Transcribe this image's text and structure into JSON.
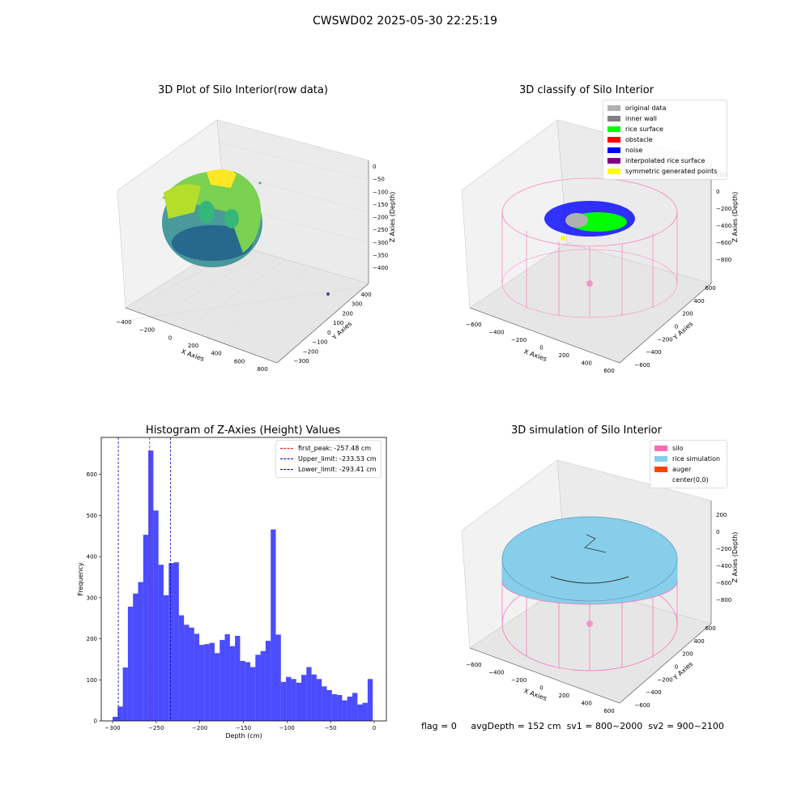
{
  "suptitle": "CWSWD02 2025-05-30 22:25:19",
  "panels": {
    "raw": {
      "title": "3D Plot of Silo Interior(row data)",
      "xlabel": "X Axies",
      "ylabel": "Y Axies",
      "zlabel": "Z Axies (Depth)",
      "xticks": [
        "−400",
        "−200",
        "0",
        "200",
        "400",
        "600",
        "800"
      ],
      "yticks": [
        "−300",
        "−200",
        "−100",
        "0",
        "100",
        "200",
        "300",
        "400"
      ],
      "zticks": [
        "0",
        "−50",
        "−100",
        "−150",
        "−200",
        "−250",
        "−300",
        "−350",
        "−400"
      ]
    },
    "classify": {
      "title": "3D classify of Silo Interior",
      "xlabel": "X Axies",
      "ylabel": "Y Axies",
      "zlabel": "Z Axies (Depth)",
      "xticks": [
        "−600",
        "−400",
        "−200",
        "0",
        "200",
        "400",
        "600"
      ],
      "yticks": [
        "−600",
        "−400",
        "−200",
        "0",
        "200",
        "400",
        "600"
      ],
      "zticks": [
        "200",
        "0",
        "−200",
        "−400",
        "−600",
        "−800"
      ],
      "legend": [
        {
          "label": "original data",
          "color": "#b0b0b0"
        },
        {
          "label": "inner wall",
          "color": "#808080"
        },
        {
          "label": "rice surface",
          "color": "#00ff00"
        },
        {
          "label": "obstacle",
          "color": "#ff0000"
        },
        {
          "label": "noise",
          "color": "#0000ff"
        },
        {
          "label": "interpolated rice surface",
          "color": "#800080"
        },
        {
          "label": "symmetric generated points",
          "color": "#ffff00"
        }
      ]
    },
    "simulation": {
      "title": "3D simulation of Silo Interior",
      "xlabel": "X Axies",
      "ylabel": "Y Axies",
      "zlabel": "Z Axies (Depth)",
      "xticks": [
        "−600",
        "−400",
        "−200",
        "0",
        "200",
        "400",
        "600"
      ],
      "yticks": [
        "−600",
        "−400",
        "−200",
        "0",
        "200",
        "400",
        "600"
      ],
      "zticks": [
        "200",
        "0",
        "−200",
        "−400",
        "−600",
        "−800"
      ],
      "legend": [
        {
          "label": "silo",
          "color": "#ff69b4"
        },
        {
          "label": "rice simulation",
          "color": "#87ceeb"
        },
        {
          "label": "auger",
          "color": "#ff4500"
        },
        {
          "label": "center(0,0)",
          "color": "#ffffff"
        }
      ]
    }
  },
  "status": {
    "flag": "flag = 0",
    "avg": "avgDepth = 152 cm",
    "sv1": "sv1 = 800~2000",
    "sv2": "sv2 = 900~2100"
  },
  "chart_data": {
    "type": "bar",
    "title": "Histogram of Z-Axies (Height) Values",
    "xlabel": "Depth (cm)",
    "ylabel": "Frequency",
    "xlim": [
      -313,
      14
    ],
    "ylim": [
      0,
      690
    ],
    "xticks": [
      -300,
      -250,
      -200,
      -150,
      -100,
      -50,
      0
    ],
    "yticks": [
      0,
      100,
      200,
      300,
      400,
      500,
      600
    ],
    "bar_color": "#0000ff",
    "bin_start": -300,
    "bin_width": 5.85,
    "values": [
      10,
      35,
      130,
      278,
      310,
      338,
      453,
      658,
      512,
      380,
      306,
      384,
      386,
      257,
      234,
      227,
      212,
      185,
      187,
      190,
      165,
      197,
      211,
      182,
      207,
      146,
      143,
      131,
      161,
      170,
      195,
      466,
      210,
      95,
      107,
      102,
      93,
      112,
      131,
      113,
      102,
      84,
      75,
      65,
      63,
      50,
      59,
      68,
      40,
      44,
      102
    ],
    "lines": [
      {
        "label": "first_peak: -257.48 cm",
        "x": -257.48,
        "color": "#ff0000"
      },
      {
        "label": "Upper_limit: -233.53 cm",
        "x": -233.53,
        "color": "#0000cc"
      },
      {
        "label": "Lower_limit: -293.41 cm",
        "x": -293.41,
        "color": "#0000cc"
      }
    ]
  }
}
